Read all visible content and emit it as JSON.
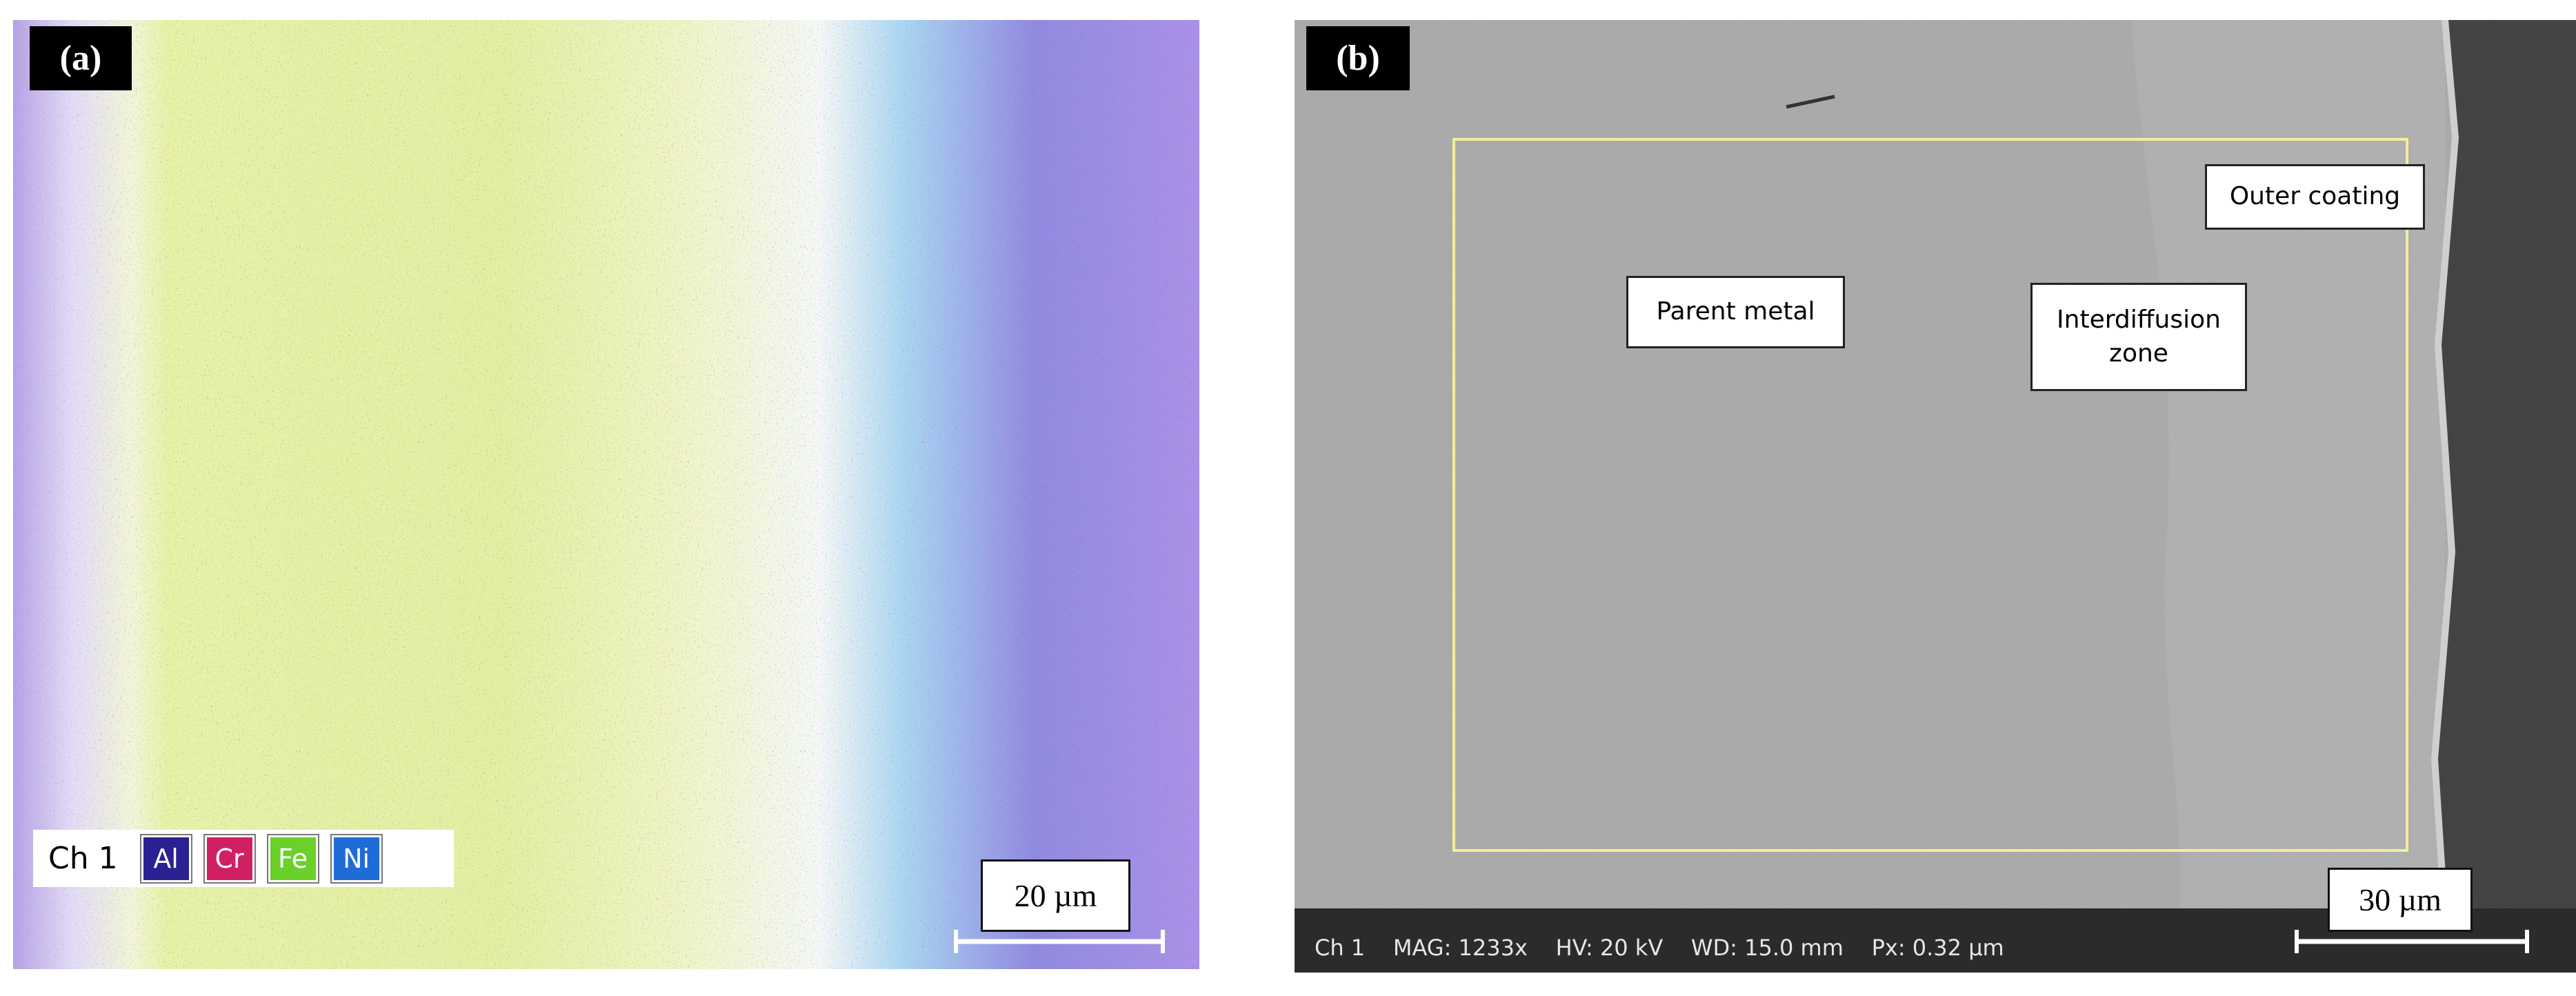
{
  "panels": [
    {
      "label": "(a)",
      "legend": {
        "channel": "Ch 1",
        "elements": [
          {
            "name": "Al",
            "color": "#2b2192"
          },
          {
            "name": "Cr",
            "color": "#d11f63"
          },
          {
            "name": "Fe",
            "color": "#6ad02a"
          },
          {
            "name": "Ni",
            "color": "#1f6cd8"
          }
        ]
      },
      "scale_bar": "20 µm"
    },
    {
      "label": "(b)",
      "annotations": [
        "Parent metal",
        "Interdiffusion zone",
        "Outer coating"
      ],
      "scale_bar": "30 µm",
      "status_bar": "Ch 1    MAG: 1233x    HV: 20 kV    WD: 15.0 mm    Px: 0.32 µm"
    }
  ]
}
